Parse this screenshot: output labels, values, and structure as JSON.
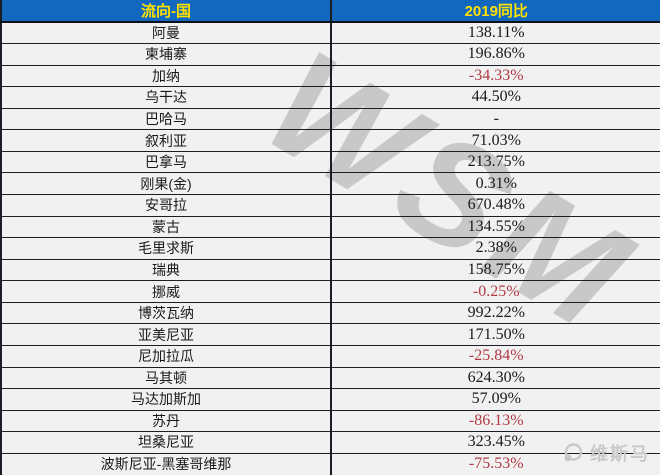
{
  "chart_data": {
    "type": "table",
    "columns": [
      "流向-国",
      "2019同比"
    ],
    "rows": [
      {
        "country": "阿曼",
        "value": "138.11%",
        "neg": false
      },
      {
        "country": "柬埔寨",
        "value": "196.86%",
        "neg": false
      },
      {
        "country": "加纳",
        "value": "-34.33%",
        "neg": true
      },
      {
        "country": "乌干达",
        "value": "44.50%",
        "neg": false
      },
      {
        "country": "巴哈马",
        "value": "-",
        "neg": false
      },
      {
        "country": "叙利亚",
        "value": "71.03%",
        "neg": false
      },
      {
        "country": "巴拿马",
        "value": "213.75%",
        "neg": false
      },
      {
        "country": "刚果(金)",
        "value": "0.31%",
        "neg": false
      },
      {
        "country": "安哥拉",
        "value": "670.48%",
        "neg": false
      },
      {
        "country": "蒙古",
        "value": "134.55%",
        "neg": false
      },
      {
        "country": "毛里求斯",
        "value": "2.38%",
        "neg": false
      },
      {
        "country": "瑞典",
        "value": "158.75%",
        "neg": false
      },
      {
        "country": "挪威",
        "value": "-0.25%",
        "neg": true
      },
      {
        "country": "博茨瓦纳",
        "value": "992.22%",
        "neg": false
      },
      {
        "country": "亚美尼亚",
        "value": "171.50%",
        "neg": false
      },
      {
        "country": "尼加拉瓜",
        "value": "-25.84%",
        "neg": true
      },
      {
        "country": "马其顿",
        "value": "624.30%",
        "neg": false
      },
      {
        "country": "马达加斯加",
        "value": "57.09%",
        "neg": false
      },
      {
        "country": "苏丹",
        "value": "-86.13%",
        "neg": true
      },
      {
        "country": "坦桑尼亚",
        "value": "323.45%",
        "neg": false
      },
      {
        "country": "波斯尼亚-黑塞哥维那",
        "value": "-75.53%",
        "neg": true
      }
    ]
  },
  "watermark": "WSM",
  "logo_text": "维斯马",
  "colors": {
    "header_bg": "#1268BF",
    "header_text": "#FFE100",
    "negative": "#B13A45",
    "text": "#1A1A1A"
  }
}
